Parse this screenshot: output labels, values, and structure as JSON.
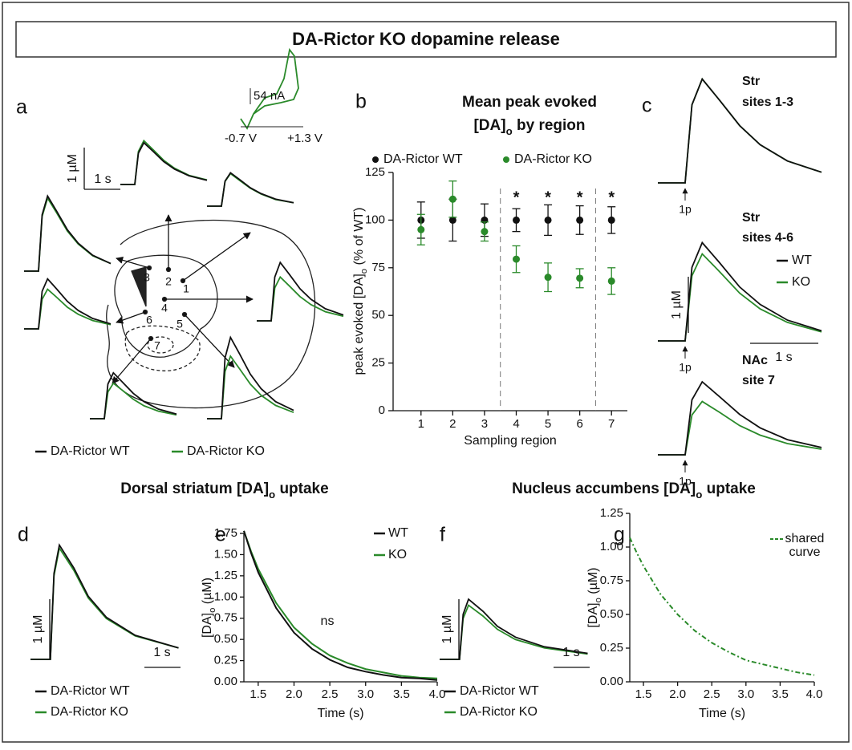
{
  "title": "DA-Rictor KO dopamine release",
  "section_titles": [
    {
      "before": "Dorsal striatum [DA]",
      "sub": "o",
      "after": " uptake"
    },
    {
      "before": "Nucleus accumbens [DA]",
      "sub": "o",
      "after": " uptake"
    }
  ],
  "chart_data": [
    {
      "type": "trace",
      "panel": "a",
      "x": [
        0,
        0.4,
        0.5,
        0.65,
        0.9,
        1.2,
        1.5,
        1.9,
        2.4
      ],
      "series_names": [
        "DA-Rictor WT",
        "DA-Rictor KO"
      ],
      "colors": [
        "#111111",
        "#2a8a2a"
      ],
      "scale_y": "1 µM",
      "scale_x": "1 s",
      "inset": {
        "current": "54 nA",
        "v_min": "-0.7 V",
        "v_max": "+1.3 V"
      },
      "site_labels": [
        "1",
        "2",
        "3",
        "4",
        "5",
        "6",
        "7"
      ],
      "sites": [
        [
          [
            0,
            0,
            0.6,
            0.8,
            0.64,
            0.44,
            0.3,
            0.17,
            0.08
          ],
          [
            0,
            0,
            0.59,
            0.78,
            0.62,
            0.43,
            0.29,
            0.16,
            0.08
          ]
        ],
        [
          [
            0,
            0,
            0.75,
            1,
            0.8,
            0.55,
            0.37,
            0.21,
            0.1
          ],
          [
            0,
            0,
            0.79,
            1.05,
            0.84,
            0.58,
            0.39,
            0.22,
            0.11
          ]
        ],
        [
          [
            0,
            0,
            1.35,
            1.8,
            1.44,
            0.99,
            0.67,
            0.38,
            0.18
          ],
          [
            0,
            0,
            1.31,
            1.75,
            1.4,
            0.96,
            0.65,
            0.37,
            0.18
          ]
        ],
        [
          [
            0,
            0,
            1.05,
            1.4,
            1.12,
            0.77,
            0.52,
            0.29,
            0.14
          ],
          [
            0,
            0,
            0.79,
            1.05,
            0.84,
            0.58,
            0.39,
            0.22,
            0.11
          ]
        ],
        [
          [
            0,
            0,
            1.46,
            1.95,
            1.56,
            1.07,
            0.72,
            0.41,
            0.2
          ],
          [
            0,
            0,
            1.13,
            1.5,
            1.2,
            0.83,
            0.56,
            0.32,
            0.15
          ]
        ],
        [
          [
            0,
            0,
            0.9,
            1.2,
            0.96,
            0.66,
            0.44,
            0.25,
            0.12
          ],
          [
            0,
            0,
            0.71,
            0.95,
            0.76,
            0.52,
            0.35,
            0.2,
            0.1
          ]
        ],
        [
          [
            0,
            0,
            0.83,
            1.1,
            0.88,
            0.61,
            0.41,
            0.23,
            0.11
          ],
          [
            0,
            0,
            0.64,
            0.85,
            0.68,
            0.47,
            0.31,
            0.18,
            0.09
          ]
        ]
      ]
    },
    {
      "type": "scatter",
      "panel": "b",
      "title": {
        "line1": "Mean peak evoked",
        "before": "[DA]",
        "sub": "o",
        "after": " by region"
      },
      "x": [
        1,
        2,
        3,
        4,
        5,
        6,
        7
      ],
      "series": [
        {
          "name": "DA-Rictor WT",
          "color": "#111111",
          "values": [
            100,
            100,
            100,
            100,
            100,
            100,
            100
          ],
          "errors": [
            9.5,
            11,
            8.5,
            6,
            8,
            7.5,
            7
          ]
        },
        {
          "name": "DA-Rictor KO",
          "color": "#2a8a2a",
          "values": [
            95,
            111,
            94,
            79.5,
            70,
            69.5,
            68
          ],
          "errors": [
            8,
            9.5,
            5,
            7,
            7.5,
            5,
            7
          ]
        }
      ],
      "xlim": [
        0.5,
        7.5
      ],
      "xticks": [
        1,
        2,
        3,
        4,
        5,
        6,
        7
      ],
      "ylim": [
        0,
        125
      ],
      "yticks": [
        0,
        25,
        50,
        75,
        100,
        125
      ],
      "xlabel": "Sampling region",
      "ylabel": {
        "before": "peak evoked [DA]",
        "sub": "o",
        "after": " (% of WT)"
      },
      "dividers": [
        3.5,
        6.5
      ],
      "annotations": [
        {
          "x": 4,
          "text": "*"
        },
        {
          "x": 5,
          "text": "*"
        },
        {
          "x": 6,
          "text": "*"
        },
        {
          "x": 7,
          "text": "*"
        }
      ]
    },
    {
      "type": "trace",
      "panel": "c",
      "x": [
        0,
        0.4,
        0.5,
        0.65,
        0.9,
        1.2,
        1.5,
        1.9,
        2.4
      ],
      "series_names": [
        "WT",
        "KO"
      ],
      "colors": [
        "#111111",
        "#2a8a2a"
      ],
      "scale_y": "1 µM",
      "scale_x": "1 s",
      "stim_label": "1p",
      "groups": [
        {
          "label": [
            "Str",
            "sites 1-3"
          ],
          "values": [
            [
              0,
              0,
              1.39,
              1.85,
              1.48,
              1.02,
              0.68,
              0.39,
              0.19
            ],
            [
              0,
              0,
              1.39,
              1.85,
              1.48,
              1.02,
              0.68,
              0.39,
              0.19
            ]
          ]
        },
        {
          "label": [
            "Str",
            "sites 4-6"
          ],
          "values": [
            [
              0,
              0,
              1.31,
              1.75,
              1.4,
              0.96,
              0.65,
              0.37,
              0.18
            ],
            [
              0,
              0,
              1.16,
              1.55,
              1.24,
              0.85,
              0.57,
              0.33,
              0.16
            ]
          ]
        },
        {
          "label": [
            "NAc",
            "site 7"
          ],
          "values": [
            [
              0,
              0,
              0.98,
              1.3,
              1.04,
              0.72,
              0.48,
              0.27,
              0.13
            ],
            [
              0,
              0,
              0.71,
              0.95,
              0.76,
              0.52,
              0.35,
              0.2,
              0.1
            ]
          ]
        }
      ]
    },
    {
      "type": "trace",
      "panel": "d",
      "x": [
        0,
        0.55,
        0.65,
        0.8,
        1.2,
        1.6,
        2.1,
        2.9,
        4.1
      ],
      "series_names": [
        "DA-Rictor WT",
        "DA-Rictor KO"
      ],
      "colors": [
        "#111111",
        "#2a8a2a"
      ],
      "scale_y": "1 µM",
      "scale_x": "1 s",
      "values": [
        [
          0,
          0,
          1.43,
          1.9,
          1.52,
          1.05,
          0.7,
          0.4,
          0.19
        ],
        [
          0,
          0,
          1.39,
          1.85,
          1.48,
          1.02,
          0.68,
          0.39,
          0.19
        ]
      ]
    },
    {
      "type": "line",
      "panel": "e",
      "x": [
        1.3,
        1.4,
        1.5,
        1.75,
        2.0,
        2.25,
        2.5,
        2.75,
        3.0,
        3.25,
        3.5,
        3.75,
        4.0
      ],
      "series": [
        {
          "name": "WT",
          "color": "#111111",
          "values": [
            1.78,
            1.52,
            1.29,
            0.87,
            0.58,
            0.39,
            0.26,
            0.17,
            0.12,
            0.08,
            0.05,
            0.04,
            0.02
          ]
        },
        {
          "name": "KO",
          "color": "#2a8a2a",
          "values": [
            1.78,
            1.54,
            1.33,
            0.93,
            0.64,
            0.45,
            0.31,
            0.22,
            0.15,
            0.11,
            0.07,
            0.05,
            0.04
          ]
        }
      ],
      "xlim": [
        1.3,
        4.0
      ],
      "xticks": [
        1.5,
        {
          "value": 2,
          "label": "2.0"
        },
        2.5,
        {
          "value": 3,
          "label": "3.0"
        },
        3.5,
        {
          "value": 4,
          "label": "4.0"
        }
      ],
      "ylim": [
        0,
        1.75
      ],
      "yticks": [
        {
          "value": 0,
          "label": "0.00"
        },
        {
          "value": 0.25,
          "label": "0.25"
        },
        {
          "value": 0.5,
          "label": "0.50"
        },
        {
          "value": 0.75,
          "label": "0.75"
        },
        {
          "value": 1,
          "label": "1.00"
        },
        {
          "value": 1.25,
          "label": "1.25"
        },
        {
          "value": 1.5,
          "label": "1.50"
        },
        {
          "value": 1.75,
          "label": "1.75"
        }
      ],
      "xlabel": "Time (s)",
      "ylabel": {
        "before": "[DA]",
        "sub": "o",
        "after": " (µM)"
      },
      "annotation": "ns"
    },
    {
      "type": "trace",
      "panel": "f",
      "x": [
        0,
        0.55,
        0.65,
        0.8,
        1.2,
        1.6,
        2.1,
        2.9,
        4.1
      ],
      "series_names": [
        "DA-Rictor WT",
        "DA-Rictor KO"
      ],
      "colors": [
        "#111111",
        "#2a8a2a"
      ],
      "scale_y": "1 µM",
      "scale_x": "1 s",
      "values": [
        [
          0,
          0,
          0.75,
          1,
          0.8,
          0.55,
          0.37,
          0.21,
          0.1
        ],
        [
          0,
          0,
          0.68,
          0.9,
          0.72,
          0.5,
          0.33,
          0.19,
          0.09
        ]
      ]
    },
    {
      "type": "line",
      "panel": "g",
      "x": [
        1.3,
        1.4,
        1.5,
        1.75,
        2.0,
        2.25,
        2.5,
        2.75,
        3.0,
        3.25,
        3.5,
        3.75,
        4.0
      ],
      "series": [
        {
          "name": [
            "shared",
            "curve"
          ],
          "color": "#2a8a2a",
          "dashed": true,
          "values": [
            1.07,
            0.96,
            0.86,
            0.65,
            0.5,
            0.38,
            0.29,
            0.22,
            0.16,
            0.13,
            0.1,
            0.07,
            0.05
          ]
        }
      ],
      "xlim": [
        1.3,
        4.0
      ],
      "xticks": [
        1.5,
        {
          "value": 2,
          "label": "2.0"
        },
        2.5,
        {
          "value": 3,
          "label": "3.0"
        },
        3.5,
        {
          "value": 4,
          "label": "4.0"
        }
      ],
      "ylim": [
        0,
        1.25
      ],
      "yticks": [
        {
          "value": 0,
          "label": "0.00"
        },
        {
          "value": 0.25,
          "label": "0.25"
        },
        {
          "value": 0.5,
          "label": "0.50"
        },
        {
          "value": 0.75,
          "label": "0.75"
        },
        {
          "value": 1,
          "label": "1.00"
        },
        {
          "value": 1.25,
          "label": "1.25"
        }
      ],
      "xlabel": "Time (s)",
      "ylabel": {
        "before": "[DA]",
        "sub": "o",
        "after": " (µM)"
      }
    }
  ]
}
